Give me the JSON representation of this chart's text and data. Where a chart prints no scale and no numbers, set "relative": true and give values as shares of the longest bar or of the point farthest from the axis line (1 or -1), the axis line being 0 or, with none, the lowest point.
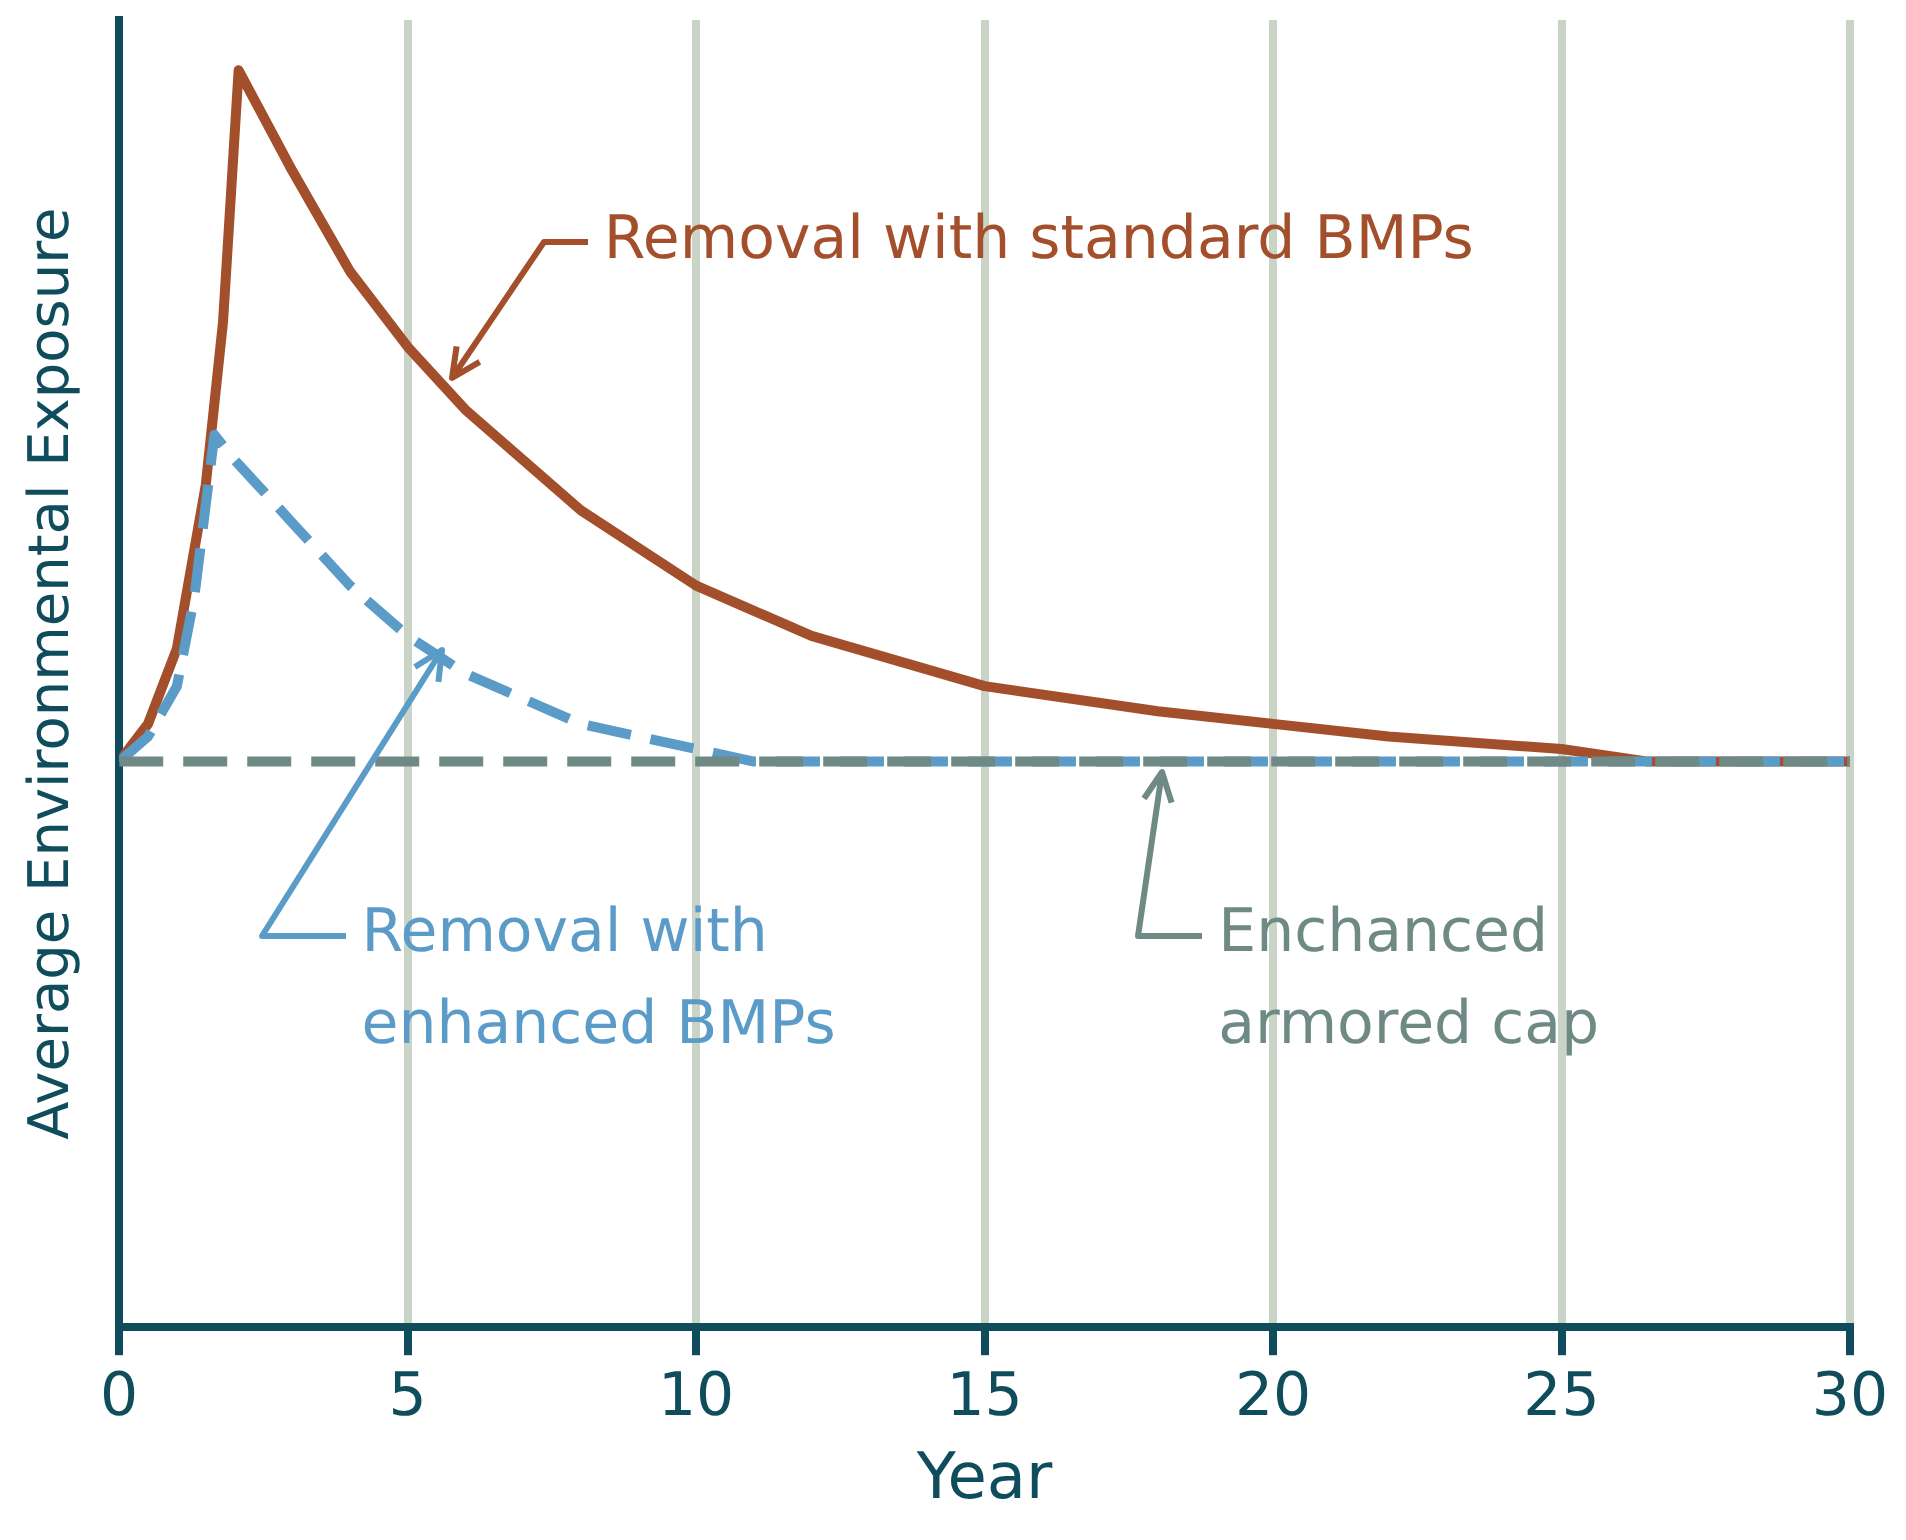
{
  "chart_data": {
    "type": "line",
    "relative": true,
    "xlabel": "Year",
    "ylabel": "Average Environmental Exposure",
    "xlim": [
      0,
      30
    ],
    "xticks": [
      0,
      5,
      10,
      15,
      20,
      25,
      30
    ],
    "grid": "x",
    "legend": false,
    "marker": "none",
    "series": [
      {
        "name": "Removal with standard BMPs",
        "color": "#a44f2b",
        "line_style": "solid",
        "x": [
          0,
          0.5,
          1,
          1.5,
          1.8,
          2.07,
          3,
          4,
          5,
          6,
          7,
          8,
          10,
          12,
          15,
          18,
          20,
          22,
          25,
          26.5,
          30
        ],
        "values": [
          0.45,
          0.48,
          0.54,
          0.67,
          0.8,
          1,
          0.92,
          0.84,
          0.78,
          0.73,
          0.69,
          0.65,
          0.59,
          0.55,
          0.51,
          0.49,
          0.48,
          0.47,
          0.46,
          0.45,
          0.45
        ]
      },
      {
        "name": "Removal with enhanced BMPs",
        "color": "#5b9bc8",
        "line_style": "dashed",
        "x": [
          0,
          0.5,
          1,
          1.3,
          1.65,
          2,
          3,
          4,
          5,
          6,
          7,
          8,
          9,
          10,
          11,
          12,
          30
        ],
        "values": [
          0.45,
          0.47,
          0.51,
          0.58,
          0.71,
          0.69,
          0.64,
          0.59,
          0.55,
          0.52,
          0.5,
          0.48,
          0.47,
          0.46,
          0.45,
          0.45,
          0.45
        ]
      },
      {
        "name": "Enchanced armored cap",
        "color": "#6f8a85",
        "line_style": "dashed",
        "x": [
          0,
          30
        ],
        "values": [
          0.45,
          0.45
        ]
      }
    ]
  }
}
